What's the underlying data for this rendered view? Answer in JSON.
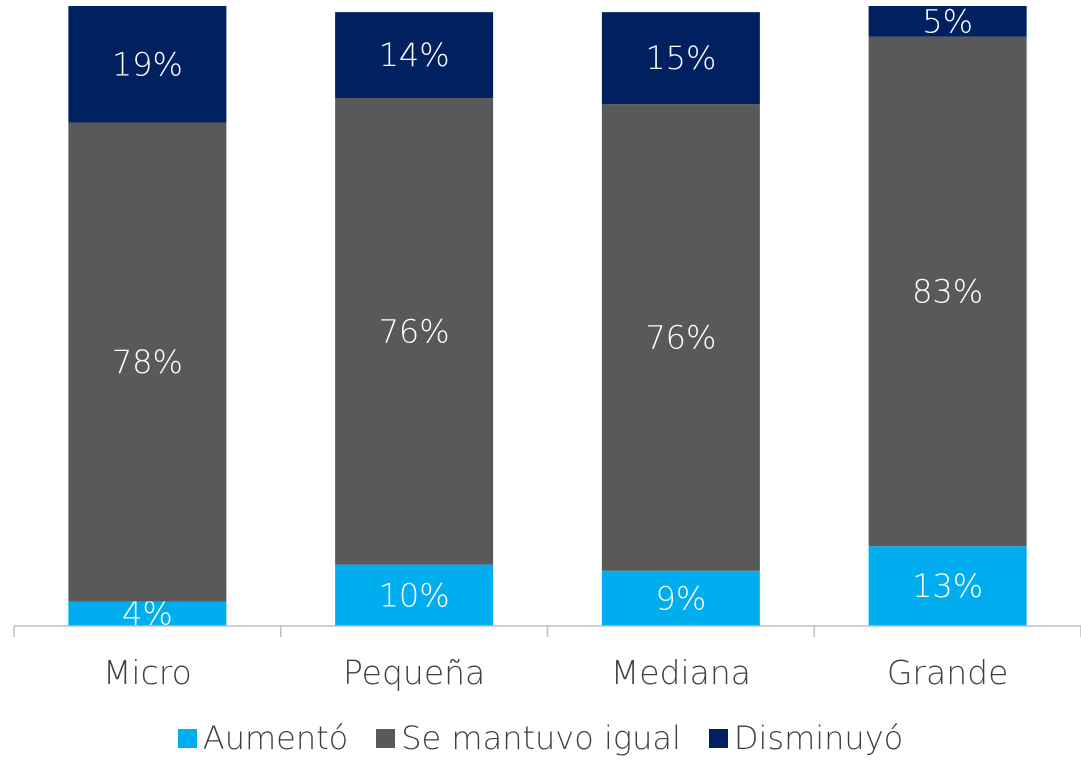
{
  "chart_data": {
    "type": "bar",
    "stacked": true,
    "categories": [
      "Micro",
      "Pequeña",
      "Mediana",
      "Grande"
    ],
    "series": [
      {
        "name": "Aumentó",
        "color": "#00aeef",
        "values": [
          4,
          10,
          9,
          13
        ],
        "labels": [
          "4%",
          "10%",
          "9%",
          "13%"
        ]
      },
      {
        "name": "Se mantuvo igual",
        "color": "#595959",
        "values": [
          78,
          76,
          76,
          83
        ],
        "labels": [
          "78%",
          "76%",
          "76%",
          "83%"
        ]
      },
      {
        "name": "Disminuyó",
        "color": "#002060",
        "values": [
          19,
          14,
          15,
          5
        ],
        "labels": [
          "19%",
          "14%",
          "15%",
          "5%"
        ]
      }
    ],
    "ylim": [
      0,
      101
    ],
    "grid": false,
    "legend_position": "bottom"
  }
}
